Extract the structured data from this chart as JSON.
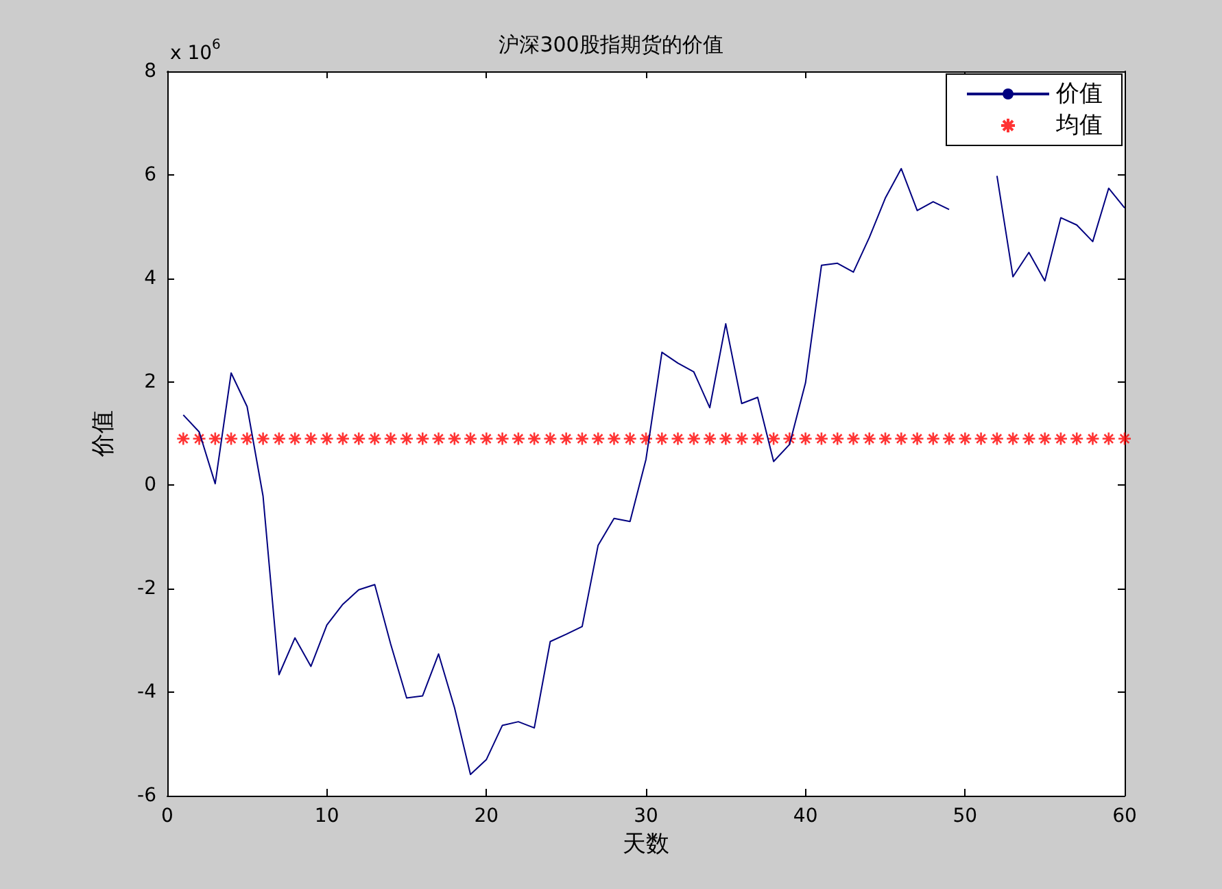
{
  "chart_data": {
    "type": "line",
    "title": "沪深300股指期货的价值",
    "xlabel": "天数",
    "ylabel": "价值",
    "annotations": [
      "x 10$^{6}$"
    ],
    "x": [
      1,
      2,
      3,
      4,
      5,
      6,
      7,
      8,
      9,
      10,
      11,
      12,
      13,
      14,
      15,
      16,
      17,
      18,
      19,
      20,
      21,
      22,
      23,
      24,
      25,
      26,
      27,
      28,
      29,
      30,
      31,
      32,
      33,
      34,
      35,
      36,
      37,
      38,
      39,
      40,
      41,
      42,
      43,
      44,
      45,
      46,
      47,
      48,
      49,
      50,
      51,
      52,
      53,
      54,
      55,
      56,
      57,
      58,
      59,
      60
    ],
    "series": [
      {
        "name": "价值",
        "color": "#000080",
        "marker": "none",
        "line_style": "solid",
        "values": [
          1.36,
          1.03,
          0.03,
          2.17,
          1.52,
          -0.21,
          -3.66,
          -2.95,
          -3.5,
          -2.7,
          -2.3,
          -2.02,
          -1.92,
          -3.07,
          -4.11,
          -4.07,
          -3.26,
          -4.3,
          -5.59,
          -5.3,
          -4.64,
          -4.57,
          -4.69,
          -3.02,
          -2.88,
          -2.73,
          -1.16,
          -0.64,
          -0.7,
          0.5,
          2.57,
          2.36,
          2.19,
          1.5,
          3.12,
          1.58,
          1.7,
          0.46,
          0.79,
          1.98,
          4.25,
          4.29,
          4.12,
          4.79,
          5.55,
          6.12,
          5.31,
          5.48,
          5.33,
          null,
          null,
          5.98,
          4.03,
          4.5,
          3.95,
          5.17,
          5.03,
          4.71,
          5.74,
          5.36
        ]
      },
      {
        "name": "均值",
        "type": "scatter",
        "color": "#ff0000",
        "marker": "cross",
        "values": [
          0.9,
          0.9,
          0.9,
          0.9,
          0.9,
          0.9,
          0.9,
          0.9,
          0.9,
          0.9,
          0.9,
          0.9,
          0.9,
          0.9,
          0.9,
          0.9,
          0.9,
          0.9,
          0.9,
          0.9,
          0.9,
          0.9,
          0.9,
          0.9,
          0.9,
          0.9,
          0.9,
          0.9,
          0.9,
          0.9,
          0.9,
          0.9,
          0.9,
          0.9,
          0.9,
          0.9,
          0.9,
          0.9,
          0.9,
          0.9,
          0.9,
          0.9,
          0.9,
          0.9,
          0.9,
          0.9,
          0.9,
          0.9,
          0.9,
          0.9,
          0.9,
          0.9,
          0.9,
          0.9,
          0.9,
          0.9,
          0.9,
          0.9,
          0.9,
          0.9
        ]
      }
    ],
    "xlim": [
      0,
      60
    ],
    "xticks": [
      0,
      10,
      20,
      30,
      40,
      50,
      60
    ],
    "ylim": [
      -6,
      8
    ],
    "yticks": [
      -6,
      -4,
      -2,
      0,
      2,
      4,
      6,
      8
    ],
    "grid": false,
    "legend": "top right"
  }
}
